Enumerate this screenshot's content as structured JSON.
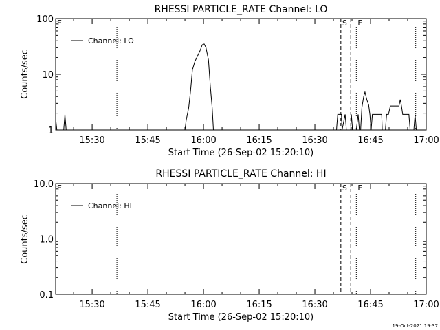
{
  "footer": {
    "timestamp": "19-Oct-2021 19:37"
  },
  "chart_data": [
    {
      "type": "line",
      "title": "RHESSI PARTICLE_RATE Channel: LO",
      "xlabel": "Start Time (26-Sep-02 15:20:10)",
      "ylabel": "Counts/sec",
      "yscale": "log",
      "ylim": [
        1,
        100
      ],
      "xlim": [
        "15:20:10",
        "17:00:00"
      ],
      "yticks": [
        {
          "v": 1,
          "label": "1"
        },
        {
          "v": 10,
          "label": "10"
        },
        {
          "v": 100,
          "label": "100"
        }
      ],
      "xticks": [
        {
          "t": "15:30",
          "label": "15:30"
        },
        {
          "t": "15:45",
          "label": "15:45"
        },
        {
          "t": "16:00",
          "label": "16:00"
        },
        {
          "t": "16:15",
          "label": "16:15"
        },
        {
          "t": "16:30",
          "label": "16:30"
        },
        {
          "t": "16:45",
          "label": "16:45"
        },
        {
          "t": "17:00",
          "label": "17:00"
        }
      ],
      "legend": {
        "label": "Channel: LO",
        "placement": "top-left"
      },
      "markers": [
        {
          "t": "15:20:10",
          "label": "E",
          "style": "none"
        },
        {
          "t": "15:36:40",
          "label": "",
          "style": "dotted"
        },
        {
          "t": "16:37:00",
          "label": "S",
          "style": "dashed"
        },
        {
          "t": "16:39:40",
          "label": "",
          "style": "dashed"
        },
        {
          "t": "16:41:10",
          "label": "E",
          "style": "dotted"
        },
        {
          "t": "16:57:10",
          "label": "",
          "style": "dotted"
        }
      ],
      "series": [
        {
          "points": [
            [
              "15:20:10",
              1.6
            ],
            [
              "15:20:30",
              1.0
            ],
            [
              "15:22:20",
              1.0
            ],
            [
              "15:22:40",
              1.9
            ],
            [
              "15:23:00",
              1.0
            ],
            [
              "15:55:00",
              1.0
            ],
            [
              "15:55:20",
              1.5
            ],
            [
              "15:56:00",
              2.5
            ],
            [
              "15:56:30",
              5
            ],
            [
              "15:57:00",
              12
            ],
            [
              "15:57:40",
              17
            ],
            [
              "15:58:20",
              21
            ],
            [
              "15:59:00",
              26
            ],
            [
              "15:59:40",
              34
            ],
            [
              "16:00:10",
              35
            ],
            [
              "16:00:40",
              30
            ],
            [
              "16:01:20",
              18
            ],
            [
              "16:01:50",
              6
            ],
            [
              "16:02:20",
              2.5
            ],
            [
              "16:02:40",
              1.0
            ],
            [
              "16:35:50",
              1.0
            ],
            [
              "16:36:10",
              1.9
            ],
            [
              "16:37:10",
              1.9
            ],
            [
              "16:37:20",
              1.0
            ],
            [
              "16:38:10",
              1.9
            ],
            [
              "16:38:30",
              1.0
            ],
            [
              "16:39:40",
              1.0
            ],
            [
              "16:39:50",
              1.9
            ],
            [
              "16:40:10",
              1.0
            ],
            [
              "16:41:10",
              1.0
            ],
            [
              "16:41:40",
              1.9
            ],
            [
              "16:42:00",
              1.0
            ],
            [
              "16:42:20",
              1.0
            ],
            [
              "16:42:40",
              2.5
            ],
            [
              "16:43:10",
              4.0
            ],
            [
              "16:43:30",
              4.8
            ],
            [
              "16:44:00",
              3.5
            ],
            [
              "16:44:30",
              2.8
            ],
            [
              "16:44:50",
              1.9
            ],
            [
              "16:45:10",
              1.0
            ],
            [
              "16:45:30",
              1.9
            ],
            [
              "16:48:00",
              1.9
            ],
            [
              "16:48:10",
              1.0
            ],
            [
              "16:49:00",
              1.0
            ],
            [
              "16:49:20",
              1.9
            ],
            [
              "16:49:50",
              1.9
            ],
            [
              "16:50:20",
              2.7
            ],
            [
              "16:52:40",
              2.7
            ],
            [
              "16:53:00",
              3.5
            ],
            [
              "16:53:20",
              2.7
            ],
            [
              "16:53:40",
              1.9
            ],
            [
              "16:55:20",
              1.9
            ],
            [
              "16:55:40",
              1.0
            ],
            [
              "16:56:40",
              1.0
            ],
            [
              "16:57:00",
              1.9
            ],
            [
              "16:57:20",
              1.0
            ]
          ]
        }
      ]
    },
    {
      "type": "line",
      "title": "RHESSI PARTICLE_RATE Channel: HI",
      "xlabel": "Start Time (26-Sep-02 15:20:10)",
      "ylabel": "Counts/sec",
      "yscale": "log",
      "ylim": [
        0.1,
        10
      ],
      "xlim": [
        "15:20:10",
        "17:00:00"
      ],
      "yticks": [
        {
          "v": 0.1,
          "label": "0.1"
        },
        {
          "v": 1,
          "label": "1.0"
        },
        {
          "v": 10,
          "label": "10.0"
        }
      ],
      "xticks": [
        {
          "t": "15:30",
          "label": "15:30"
        },
        {
          "t": "15:45",
          "label": "15:45"
        },
        {
          "t": "16:00",
          "label": "16:00"
        },
        {
          "t": "16:15",
          "label": "16:15"
        },
        {
          "t": "16:30",
          "label": "16:30"
        },
        {
          "t": "16:45",
          "label": "16:45"
        },
        {
          "t": "17:00",
          "label": "17:00"
        }
      ],
      "legend": {
        "label": "Channel: HI",
        "placement": "top-left"
      },
      "markers": [
        {
          "t": "15:20:10",
          "label": "E",
          "style": "none"
        },
        {
          "t": "15:36:40",
          "label": "",
          "style": "dotted"
        },
        {
          "t": "16:37:00",
          "label": "S",
          "style": "dashed"
        },
        {
          "t": "16:39:40",
          "label": "",
          "style": "dashed"
        },
        {
          "t": "16:41:10",
          "label": "E",
          "style": "dotted"
        },
        {
          "t": "16:57:10",
          "label": "",
          "style": "dotted"
        }
      ],
      "series": [
        {
          "points": []
        }
      ]
    }
  ]
}
